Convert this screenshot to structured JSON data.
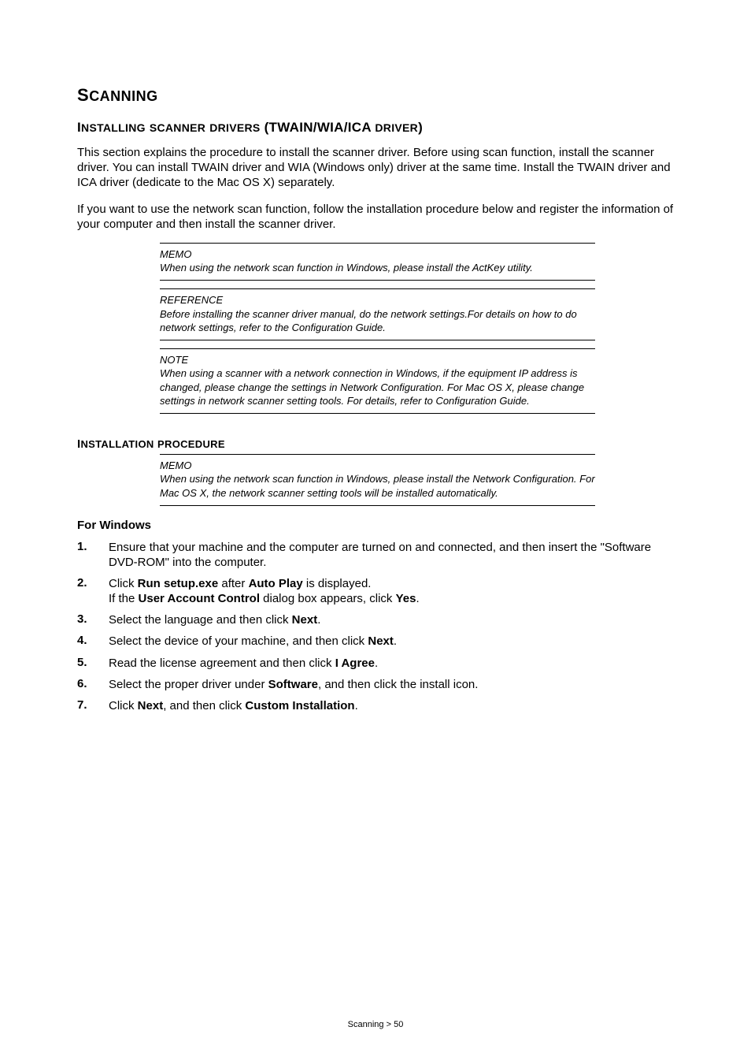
{
  "main_heading_first": "S",
  "main_heading_rest": "CANNING",
  "sub_heading_first": "I",
  "sub_heading_rest_1": "NSTALLING",
  "sub_heading_rest_2": "SCANNER",
  "sub_heading_rest_3": "DRIVERS",
  "sub_heading_paren": "(TWAIN/WIA/ICA",
  "sub_heading_rest_4": "DRIVER",
  "sub_heading_close": ")",
  "para1": "This section explains the procedure to install the scanner driver. Before using scan function, install the scanner driver. You can install TWAIN driver and WIA (Windows only) driver at the same time. Install the TWAIN driver and ICA driver (dedicate to the Mac OS X) separately.",
  "para2": "If you want to use the network scan function, follow the installation procedure below and register the information of your computer and then install the scanner driver.",
  "note1": {
    "label": "MEMO",
    "body": "When using the network scan function in Windows, please install the ActKey utility."
  },
  "note2": {
    "label": "REFERENCE",
    "body": "Before installing the scanner driver manual, do the network settings.For details on how to do network settings, refer to the Configuration Guide."
  },
  "note3": {
    "label": "NOTE",
    "body": "When using a scanner with a network connection in Windows, if the equipment IP address is changed, please change the settings in Network Configuration. For Mac OS X, please change settings in network scanner setting tools. For details, refer to Configuration Guide."
  },
  "install_heading_first": "I",
  "install_heading_rest_1": "NSTALLATION",
  "install_heading_rest_2": "PROCEDURE",
  "note4": {
    "label": "MEMO",
    "body": "When using the network scan function in Windows, please install the Network Configuration. For Mac OS X, the network scanner setting tools will be installed automatically."
  },
  "for_windows": "For Windows",
  "steps": [
    {
      "n": "1.",
      "pre": "Ensure that your machine and the computer are turned on and connected, and then insert the \"Software DVD-ROM\" into the computer."
    },
    {
      "n": "2.",
      "s1": "Click ",
      "b1": "Run setup.exe",
      "s2": " after ",
      "b2": "Auto Play",
      "s3": " is displayed.",
      "br": true,
      "s4": "If the ",
      "b3": "User Account Control",
      "s5": " dialog box appears, click ",
      "b4": "Yes",
      "s6": "."
    },
    {
      "n": "3.",
      "s1": "Select the language and then click ",
      "b1": "Next",
      "s2": "."
    },
    {
      "n": "4.",
      "s1": "Select the device of your machine, and then click ",
      "b1": "Next",
      "s2": "."
    },
    {
      "n": "5.",
      "s1": "Read the license agreement and then click ",
      "b1": "I Agree",
      "s2": "."
    },
    {
      "n": "6.",
      "s1": "Select the proper driver under ",
      "b1": "Software",
      "s2": ", and then click the install icon."
    },
    {
      "n": "7.",
      "s1": "Click ",
      "b1": "Next",
      "s2": ", and then click ",
      "b2": "Custom Installation",
      "s3": "."
    }
  ],
  "footer": "Scanning > 50"
}
